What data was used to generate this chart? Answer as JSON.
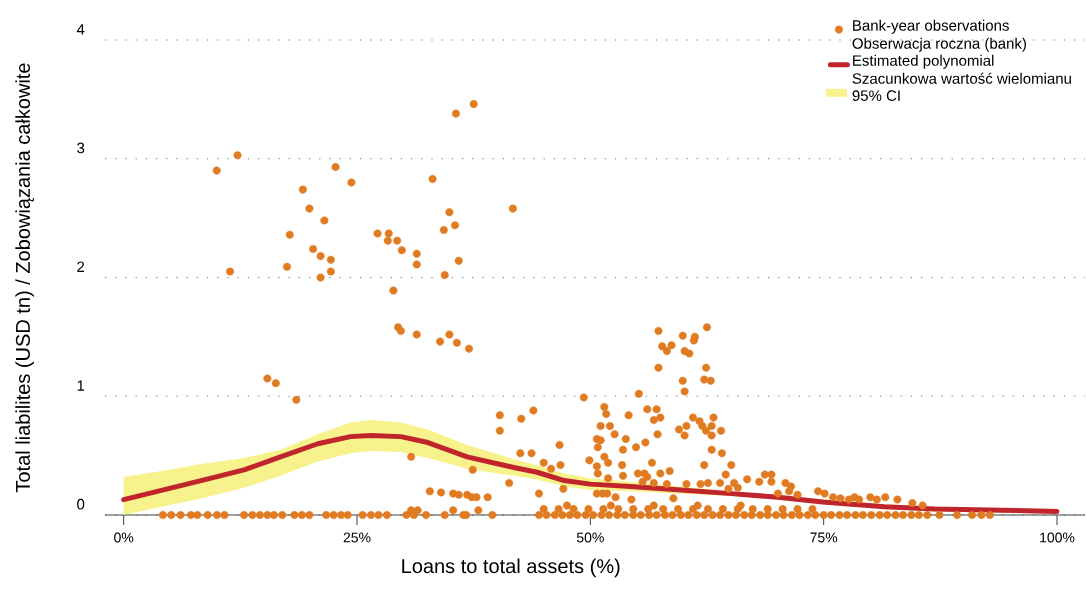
{
  "chart_data": {
    "type": "scatter",
    "xlabel": "Loans to total assets (%)",
    "ylabel": "Total liabilites (USD tn) / Zobowiązania całkowite",
    "xlim": [
      -2,
      103
    ],
    "ylim": [
      0,
      4
    ],
    "xticks": [
      {
        "value": 0,
        "label": "0%"
      },
      {
        "value": 25,
        "label": "25%"
      },
      {
        "value": 50,
        "label": "50%"
      },
      {
        "value": 75,
        "label": "75%"
      },
      {
        "value": 100,
        "label": "100%"
      }
    ],
    "yticks": [
      0,
      1,
      2,
      3,
      4
    ],
    "grid": "y",
    "legend": "top right",
    "series": [
      {
        "name": "Bank-year observations Obserwacja roczna (bank)",
        "color": "#e07b22",
        "marker": "circle",
        "x": [
          9.97,
          12.2,
          11.4,
          19.2,
          19.9,
          17.8,
          17.5,
          21.5,
          20.3,
          21.1,
          22.2,
          21.1,
          22.2,
          22.7,
          24.4,
          27.2,
          28.4,
          28.3,
          29.3,
          29.8,
          31.4,
          31.4,
          28.9,
          29.4,
          29.7,
          31.4,
          33.1,
          34.3,
          34.9,
          35.5,
          35.9,
          34.4,
          35.6,
          37.5,
          33.9,
          34.9,
          35.7,
          37.0,
          41.7,
          15.4,
          16.3,
          18.5,
          30.8,
          37.4,
          41.3,
          32.8,
          34.0,
          35.3,
          35.9,
          36.8,
          37.3,
          37.8,
          39.0,
          38.0,
          35.3,
          31.5,
          30.8,
          57.3,
          59.9,
          62.5,
          61.1,
          61.2,
          57.7,
          58.7,
          58.2,
          60.1,
          60.6,
          57.3,
          62.4,
          59.9,
          62.2,
          62.9,
          60.1,
          55.2,
          49.3,
          40.3,
          40.3,
          42.6,
          43.9,
          51.5,
          51.7,
          51.1,
          52.1,
          52.6,
          50.7,
          51.1,
          50.8,
          53.8,
          54.1,
          56.1,
          57.1,
          57.5,
          56.8,
          57.2,
          53.5,
          54.9,
          55.9,
          59.5,
          60.3,
          60.1,
          61.0,
          61.7,
          62.0,
          62.4,
          63.2,
          63.0,
          63.0,
          64.0,
          63.0,
          64.1,
          46.7,
          42.5,
          43.7,
          45.0,
          46.8,
          45.8,
          51.5,
          51.9,
          50.7,
          50.8,
          51.9,
          49.9,
          53.4,
          53.5,
          56.6,
          55.1,
          55.8,
          55.6,
          56.1,
          56.8,
          57.5,
          58.5,
          58.2,
          62.2,
          60.3,
          61.8,
          62.6,
          63.9,
          64.5,
          65.1,
          65.4,
          65.8,
          64.8,
          66.8,
          68.1,
          68.7,
          69.4,
          69.4,
          70.1,
          44.5,
          47.1,
          50.7,
          51.3,
          51.8,
          52.7,
          54.4,
          58.9,
          70.9,
          71.5,
          71.3,
          72.2,
          74.4,
          75.1,
          76.0,
          76.8,
          77.7,
          78.3,
          78.8,
          80.0,
          80.7,
          81.6,
          82.9,
          84.5,
          85.6,
          4.2,
          5.1,
          6.1,
          7.2,
          7.9,
          9.0,
          10.0,
          10.8,
          12.9,
          13.8,
          14.6,
          15.4,
          16.1,
          17.0,
          18.3,
          19.1,
          19.9,
          21.7,
          22.5,
          23.3,
          24.0,
          25.6,
          26.5,
          27.3,
          28.2,
          30.3,
          31.1,
          32.4,
          34.4,
          36.4,
          36.7,
          39.5,
          44.5,
          45.3,
          46.2,
          47.0,
          47.8,
          48.6,
          49.5,
          50.3,
          51.2,
          52.0,
          52.9,
          53.7,
          54.6,
          55.4,
          56.3,
          57.1,
          58.0,
          58.8,
          59.7,
          60.5,
          61.4,
          62.2,
          63.1,
          63.9,
          64.8,
          65.6,
          66.5,
          67.3,
          68.2,
          69.0,
          69.9,
          70.7,
          71.6,
          72.4,
          73.3,
          74.1,
          75.0,
          75.8,
          76.7,
          77.5,
          78.4,
          79.2,
          80.1,
          81.0,
          81.8,
          82.7,
          83.5,
          84.4,
          85.2,
          86.1,
          87.4,
          89.3,
          90.9,
          91.9,
          92.8,
          45.0,
          46.6,
          48.2,
          49.8,
          51.4,
          53.0,
          54.6,
          56.2,
          57.8,
          59.4,
          61.0,
          62.6,
          64.2,
          65.8,
          67.4,
          69.0,
          70.6,
          72.2,
          73.8,
          47.5,
          52.2,
          56.8,
          61.5,
          66.1
        ],
        "values": [
          2.9,
          3.03,
          2.05,
          2.74,
          2.58,
          2.36,
          2.09,
          2.48,
          2.24,
          2.18,
          2.15,
          2.0,
          2.05,
          2.93,
          2.8,
          2.37,
          2.37,
          2.31,
          2.31,
          2.23,
          2.2,
          2.11,
          1.89,
          1.58,
          1.55,
          1.52,
          2.83,
          2.4,
          2.55,
          2.44,
          2.14,
          2.02,
          3.38,
          3.46,
          1.46,
          1.52,
          1.45,
          1.4,
          2.58,
          1.15,
          1.11,
          0.97,
          0.49,
          0.38,
          0.27,
          0.2,
          0.19,
          0.18,
          0.17,
          0.17,
          0.15,
          0.15,
          0.15,
          0.04,
          0.04,
          0.04,
          0.04,
          1.55,
          1.51,
          1.58,
          1.47,
          1.5,
          1.42,
          1.43,
          1.38,
          1.38,
          1.36,
          1.24,
          1.24,
          1.13,
          1.14,
          1.13,
          1.04,
          1.02,
          0.99,
          0.84,
          0.71,
          0.81,
          0.88,
          0.91,
          0.85,
          0.75,
          0.75,
          0.68,
          0.64,
          0.63,
          0.57,
          0.64,
          0.84,
          0.89,
          0.89,
          0.82,
          0.8,
          0.68,
          0.55,
          0.57,
          0.61,
          0.72,
          0.75,
          0.67,
          0.82,
          0.79,
          0.75,
          0.71,
          0.82,
          0.75,
          0.67,
          0.71,
          0.55,
          0.52,
          0.59,
          0.52,
          0.52,
          0.44,
          0.42,
          0.39,
          0.49,
          0.44,
          0.41,
          0.35,
          0.31,
          0.46,
          0.42,
          0.33,
          0.44,
          0.35,
          0.35,
          0.28,
          0.32,
          0.27,
          0.35,
          0.37,
          0.26,
          0.42,
          0.26,
          0.26,
          0.27,
          0.27,
          0.34,
          0.42,
          0.27,
          0.23,
          0.22,
          0.3,
          0.28,
          0.34,
          0.34,
          0.28,
          0.18,
          0.18,
          0.22,
          0.18,
          0.18,
          0.18,
          0.15,
          0.13,
          0.14,
          0.27,
          0.24,
          0.2,
          0.17,
          0.2,
          0.18,
          0.15,
          0.14,
          0.13,
          0.15,
          0.13,
          0.15,
          0.13,
          0.15,
          0.13,
          0.1,
          0.08,
          0,
          0,
          0,
          0,
          0,
          0,
          0,
          0,
          0,
          0,
          0,
          0,
          0,
          0,
          0,
          0,
          0,
          0,
          0,
          0,
          0,
          0,
          0,
          0,
          0,
          0,
          0,
          0,
          0,
          0,
          0,
          0,
          0,
          0,
          0,
          0,
          0,
          0,
          0,
          0,
          0,
          0,
          0,
          0,
          0,
          0,
          0,
          0,
          0,
          0,
          0,
          0,
          0,
          0,
          0,
          0,
          0,
          0,
          0,
          0,
          0,
          0,
          0,
          0,
          0,
          0,
          0,
          0,
          0,
          0,
          0,
          0,
          0,
          0,
          0,
          0,
          0,
          0,
          0,
          0,
          0,
          0,
          0,
          0,
          0,
          0,
          0,
          0.05,
          0.05,
          0.05,
          0.05,
          0.05,
          0.05,
          0.05,
          0.05,
          0.05,
          0.05,
          0.05,
          0.05,
          0.05,
          0.05,
          0.05,
          0.05,
          0.05,
          0.05,
          0.05,
          0.08,
          0.08,
          0.08,
          0.08,
          0.08
        ]
      },
      {
        "type": "line",
        "name": "Estimated polynomial Szacunkowa wartość wielomianu",
        "color": "#c0242c",
        "x": [
          0,
          4.7,
          8.3,
          12.9,
          16.8,
          20.8,
          24.3,
          26.5,
          29.7,
          32.6,
          36.8,
          41.8,
          44.3,
          47.2,
          50,
          54.3,
          59.7,
          65.1,
          70.1,
          74.9,
          81.5,
          86.9,
          94,
          100
        ],
        "values": [
          0.13,
          0.22,
          0.29,
          0.38,
          0.49,
          0.6,
          0.66,
          0.67,
          0.66,
          0.61,
          0.49,
          0.4,
          0.36,
          0.29,
          0.26,
          0.24,
          0.21,
          0.18,
          0.15,
          0.11,
          0.07,
          0.05,
          0.04,
          0.03
        ],
        "lower": [
          0,
          0.08,
          0.14,
          0.23,
          0.33,
          0.45,
          0.52,
          0.54,
          0.53,
          0.48,
          0.39,
          0.33,
          0.3,
          0.24,
          0.21,
          0.2,
          0.18,
          0.16,
          0.13,
          0.09,
          0.05,
          0.03,
          0.02,
          0.01
        ],
        "upper": [
          0.32,
          0.38,
          0.43,
          0.48,
          0.55,
          0.68,
          0.78,
          0.8,
          0.78,
          0.72,
          0.59,
          0.47,
          0.42,
          0.35,
          0.31,
          0.28,
          0.24,
          0.2,
          0.17,
          0.13,
          0.09,
          0.07,
          0.06,
          0.05
        ]
      }
    ],
    "annotations": [
      "95% CI"
    ]
  }
}
